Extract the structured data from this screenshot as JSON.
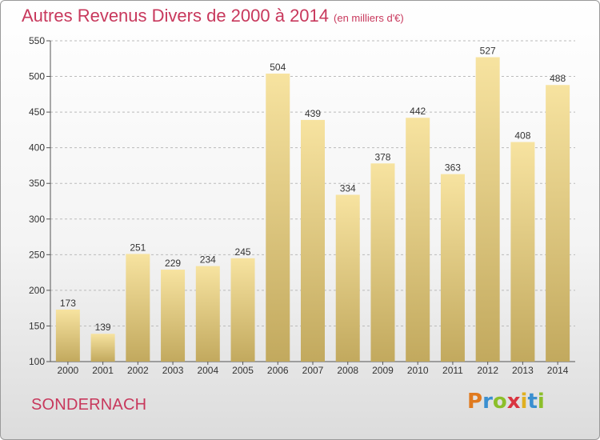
{
  "title": "Autres Revenus Divers de 2000 à 2014",
  "subtitle": "(en milliers d'€)",
  "place": "SONDERNACH",
  "logo": {
    "letters": [
      "P",
      "r",
      "o",
      "x",
      "i",
      "t",
      "i"
    ],
    "colors": [
      "#e07a1f",
      "#3a8fd0",
      "#8cbf2a",
      "#d9343f",
      "#e0b020",
      "#3a8fd0",
      "#8cbf2a"
    ]
  },
  "colors": {
    "title": "#c8385c",
    "bar_light": "#f7e3a0",
    "bar_dark": "#c2a95e",
    "axis": "#555555",
    "grid": "#bbbbbb"
  },
  "chart_data": {
    "type": "bar",
    "categories": [
      "2000",
      "2001",
      "2002",
      "2003",
      "2004",
      "2005",
      "2006",
      "2007",
      "2008",
      "2009",
      "2010",
      "2011",
      "2012",
      "2013",
      "2014"
    ],
    "values": [
      173,
      139,
      251,
      229,
      234,
      245,
      504,
      439,
      334,
      378,
      442,
      363,
      527,
      408,
      488
    ],
    "ylim": [
      100,
      550
    ],
    "yticks": [
      100,
      150,
      200,
      250,
      300,
      350,
      400,
      450,
      500,
      550
    ],
    "grid": "horizontal dashed",
    "xlabel": "",
    "ylabel": ""
  }
}
